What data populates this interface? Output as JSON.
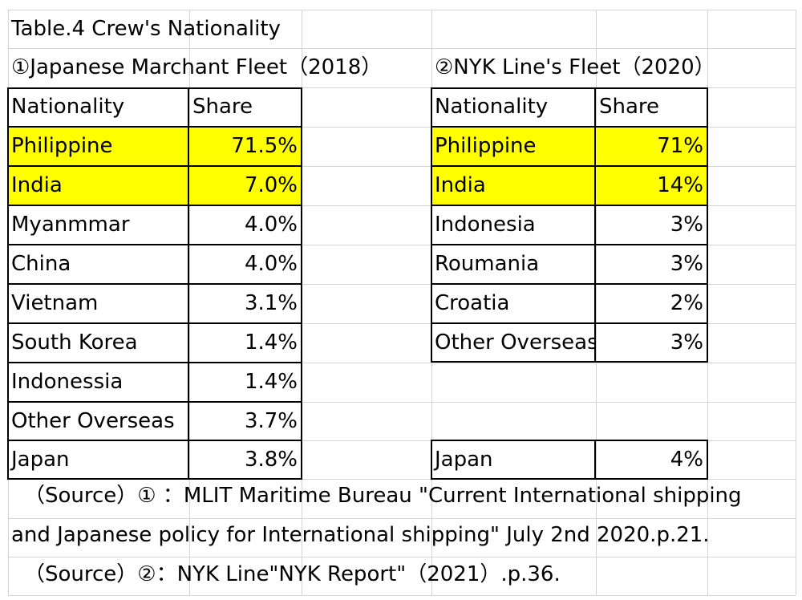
{
  "title": "Table.4  Crew's Nationality",
  "table1": {
    "caption": "①Japanese Marchant Fleet（2018）",
    "header": {
      "nationality": "Nationality",
      "share": "Share"
    },
    "rows": [
      {
        "nationality": "Philippine",
        "share": "71.5%",
        "highlight": true
      },
      {
        "nationality": "India",
        "share": "7.0%",
        "highlight": true
      },
      {
        "nationality": "Myanmmar",
        "share": "4.0%"
      },
      {
        "nationality": "China",
        "share": "4.0%"
      },
      {
        "nationality": "Vietnam",
        "share": "3.1%"
      },
      {
        "nationality": "South Korea",
        "share": "1.4%"
      },
      {
        "nationality": "Indonessia",
        "share": "1.4%"
      },
      {
        "nationality": "Other Overseas",
        "share": "3.7%"
      },
      {
        "nationality": "Japan",
        "share": "3.8%"
      }
    ]
  },
  "table2": {
    "caption": "②NYK Line's Fleet（2020）",
    "header": {
      "nationality": "Nationality",
      "share": "Share"
    },
    "rows": [
      {
        "nationality": "Philippine",
        "share": "71%",
        "highlight": true
      },
      {
        "nationality": "India",
        "share": "14%",
        "highlight": true
      },
      {
        "nationality": "Indonesia",
        "share": "3%"
      },
      {
        "nationality": "Roumania",
        "share": "3%"
      },
      {
        "nationality": "Croatia",
        "share": "2%"
      },
      {
        "nationality": "Other Overseas",
        "share": "3%"
      },
      {
        "nationality": "",
        "share": ""
      },
      {
        "nationality": "",
        "share": ""
      },
      {
        "nationality": "Japan",
        "share": "4%"
      }
    ]
  },
  "sources": {
    "line1": "（Source）① ：MLIT Maritime Bureau \"Current International shipping",
    "line2": "and Japanese policy for International shipping\" July 2nd 2020.p.21.",
    "line3": "（Source）②：NYK Line\"NYK Report\"（2021）.p.36."
  },
  "colors": {
    "highlight": "#ffff00",
    "gridline": "#d4d4d4",
    "border": "#000000"
  }
}
